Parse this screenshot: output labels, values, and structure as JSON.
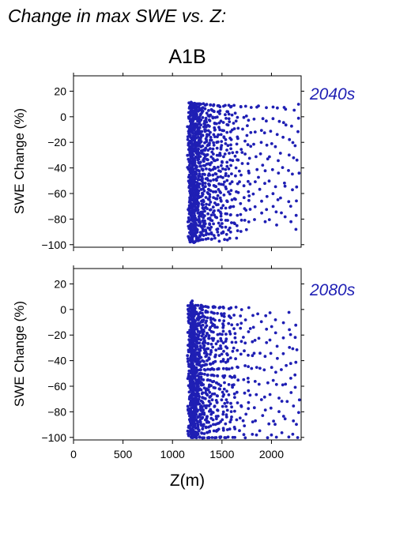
{
  "page": {
    "title": "Change in max SWE vs. Z:",
    "scenario": "A1B"
  },
  "colors": {
    "points": "#1f1fb4",
    "period_label": "#1f1fb4"
  },
  "chart_data": [
    {
      "type": "scatter",
      "period": "2040s",
      "xlabel": "Z(m)",
      "ylabel": "SWE Change (%)",
      "xlim": [
        0,
        2300
      ],
      "ylim": [
        -102,
        32
      ],
      "x_ticks": [
        0,
        500,
        1000,
        1500,
        2000
      ],
      "y_ticks": [
        20,
        0,
        -20,
        -40,
        -60,
        -80,
        -100
      ],
      "show_x_tick_labels": false,
      "grid": false,
      "x_min_data": 1170,
      "x_max_data": 2280,
      "y_min_data": -98,
      "y_max_data": 11,
      "columns": [
        {
          "x": 1175,
          "ymin": -98,
          "ymax": 11,
          "density": 70
        },
        {
          "x": 1185,
          "ymin": -98,
          "ymax": 11,
          "density": 70
        },
        {
          "x": 1195,
          "ymin": -98,
          "ymax": 11,
          "density": 70
        },
        {
          "x": 1205,
          "ymin": -98,
          "ymax": 11,
          "density": 68
        },
        {
          "x": 1215,
          "ymin": -98,
          "ymax": 10,
          "density": 66
        },
        {
          "x": 1225,
          "ymin": -97,
          "ymax": 10,
          "density": 62
        },
        {
          "x": 1240,
          "ymin": -97,
          "ymax": 10,
          "density": 55
        },
        {
          "x": 1255,
          "ymin": -97,
          "ymax": 10,
          "density": 50
        },
        {
          "x": 1270,
          "ymin": -96,
          "ymax": 10,
          "density": 42
        },
        {
          "x": 1285,
          "ymin": -96,
          "ymax": 10,
          "density": 40
        },
        {
          "x": 1300,
          "ymin": -96,
          "ymax": 10,
          "density": 36
        },
        {
          "x": 1315,
          "ymin": -96,
          "ymax": 10,
          "density": 32
        },
        {
          "x": 1330,
          "ymin": -96,
          "ymax": 10,
          "density": 30
        },
        {
          "x": 1350,
          "ymin": -95,
          "ymax": 9,
          "density": 28
        },
        {
          "x": 1370,
          "ymin": -96,
          "ymax": 9,
          "density": 28
        },
        {
          "x": 1390,
          "ymin": -96,
          "ymax": 9,
          "density": 26
        },
        {
          "x": 1410,
          "ymin": -95,
          "ymax": 9,
          "density": 24
        },
        {
          "x": 1430,
          "ymin": -93,
          "ymax": 9,
          "density": 22
        },
        {
          "x": 1450,
          "ymin": -93,
          "ymax": 9,
          "density": 22
        },
        {
          "x": 1470,
          "ymin": -90,
          "ymax": 9,
          "density": 22
        },
        {
          "x": 1490,
          "ymin": -97,
          "ymax": 8,
          "density": 20
        },
        {
          "x": 1510,
          "ymin": -96,
          "ymax": 8,
          "density": 18
        },
        {
          "x": 1535,
          "ymin": -96,
          "ymax": 9,
          "density": 22
        },
        {
          "x": 1560,
          "ymin": -92,
          "ymax": 9,
          "density": 20
        },
        {
          "x": 1585,
          "ymin": -95,
          "ymax": 8,
          "density": 18
        },
        {
          "x": 1610,
          "ymin": -90,
          "ymax": 8,
          "density": 16
        },
        {
          "x": 1640,
          "ymin": -95,
          "ymax": 9,
          "density": 18
        },
        {
          "x": 1675,
          "ymin": -85,
          "ymax": 8,
          "density": 12
        },
        {
          "x": 1710,
          "ymin": -90,
          "ymax": 8,
          "density": 12
        },
        {
          "x": 1750,
          "ymin": -88,
          "ymax": 8,
          "density": 14
        },
        {
          "x": 1790,
          "ymin": -82,
          "ymax": 7,
          "density": 10
        },
        {
          "x": 1840,
          "ymin": -80,
          "ymax": 8,
          "density": 10
        },
        {
          "x": 1890,
          "ymin": -75,
          "ymax": 8,
          "density": 10
        },
        {
          "x": 1950,
          "ymin": -82,
          "ymax": 7,
          "density": 10
        },
        {
          "x": 2000,
          "ymin": -80,
          "ymax": 8,
          "density": 10
        },
        {
          "x": 2060,
          "ymin": -85,
          "ymax": 7,
          "density": 10
        },
        {
          "x": 2110,
          "ymin": -75,
          "ymax": 7,
          "density": 8
        },
        {
          "x": 2160,
          "ymin": -78,
          "ymax": 6,
          "density": 8
        },
        {
          "x": 2210,
          "ymin": -82,
          "ymax": 5,
          "density": 8
        },
        {
          "x": 2260,
          "ymin": -88,
          "ymax": 10,
          "density": 10
        }
      ]
    },
    {
      "type": "scatter",
      "period": "2080s",
      "xlabel": "Z(m)",
      "ylabel": "SWE Change (%)",
      "xlim": [
        0,
        2300
      ],
      "ylim": [
        -102,
        32
      ],
      "x_ticks": [
        0,
        500,
        1000,
        1500,
        2000
      ],
      "y_ticks": [
        20,
        0,
        -20,
        -40,
        -60,
        -80,
        -100
      ],
      "show_x_tick_labels": true,
      "grid": false,
      "x_min_data": 1170,
      "x_max_data": 2280,
      "y_min_data": -100,
      "y_max_data": 7,
      "columns": [
        {
          "x": 1175,
          "ymin": -100,
          "ymax": 3,
          "density": 70
        },
        {
          "x": 1185,
          "ymin": -100,
          "ymax": 7,
          "density": 70
        },
        {
          "x": 1195,
          "ymin": -100,
          "ymax": 5,
          "density": 70
        },
        {
          "x": 1205,
          "ymin": -100,
          "ymax": 4,
          "density": 68
        },
        {
          "x": 1215,
          "ymin": -100,
          "ymax": 3,
          "density": 64
        },
        {
          "x": 1225,
          "ymin": -100,
          "ymax": 3,
          "density": 60
        },
        {
          "x": 1240,
          "ymin": -100,
          "ymax": 3,
          "density": 52
        },
        {
          "x": 1255,
          "ymin": -100,
          "ymax": 3,
          "density": 46
        },
        {
          "x": 1270,
          "ymin": -100,
          "ymax": 3,
          "density": 40
        },
        {
          "x": 1285,
          "ymin": -100,
          "ymax": 3,
          "density": 36
        },
        {
          "x": 1300,
          "ymin": -100,
          "ymax": 3,
          "density": 34
        },
        {
          "x": 1315,
          "ymin": -100,
          "ymax": 2,
          "density": 30
        },
        {
          "x": 1330,
          "ymin": -100,
          "ymax": 2,
          "density": 28
        },
        {
          "x": 1350,
          "ymin": -100,
          "ymax": 2,
          "density": 26
        },
        {
          "x": 1370,
          "ymin": -100,
          "ymax": 2,
          "density": 26
        },
        {
          "x": 1390,
          "ymin": -100,
          "ymax": 2,
          "density": 24
        },
        {
          "x": 1410,
          "ymin": -100,
          "ymax": 2,
          "density": 22
        },
        {
          "x": 1430,
          "ymin": -100,
          "ymax": 2,
          "density": 22
        },
        {
          "x": 1450,
          "ymin": -100,
          "ymax": 2,
          "density": 20
        },
        {
          "x": 1470,
          "ymin": -100,
          "ymax": 2,
          "density": 20
        },
        {
          "x": 1490,
          "ymin": -100,
          "ymax": 1,
          "density": 18
        },
        {
          "x": 1510,
          "ymin": -100,
          "ymax": 1,
          "density": 16
        },
        {
          "x": 1535,
          "ymin": -100,
          "ymax": 2,
          "density": 20
        },
        {
          "x": 1560,
          "ymin": -100,
          "ymax": 1,
          "density": 18
        },
        {
          "x": 1585,
          "ymin": -100,
          "ymax": 1,
          "density": 16
        },
        {
          "x": 1610,
          "ymin": -100,
          "ymax": 1,
          "density": 14
        },
        {
          "x": 1640,
          "ymin": -100,
          "ymax": 2,
          "density": 16
        },
        {
          "x": 1675,
          "ymin": -95,
          "ymax": -5,
          "density": 10
        },
        {
          "x": 1710,
          "ymin": -98,
          "ymax": 0,
          "density": 10
        },
        {
          "x": 1750,
          "ymin": -100,
          "ymax": 1,
          "density": 12
        },
        {
          "x": 1790,
          "ymin": -98,
          "ymax": -5,
          "density": 10
        },
        {
          "x": 1840,
          "ymin": -98,
          "ymax": -3,
          "density": 10
        },
        {
          "x": 1890,
          "ymin": -95,
          "ymax": -10,
          "density": 8
        },
        {
          "x": 1950,
          "ymin": -100,
          "ymax": -5,
          "density": 10
        },
        {
          "x": 2000,
          "ymin": -98,
          "ymax": -3,
          "density": 10
        },
        {
          "x": 2060,
          "ymin": -100,
          "ymax": -8,
          "density": 10
        },
        {
          "x": 2110,
          "ymin": -96,
          "ymax": -10,
          "density": 8
        },
        {
          "x": 2160,
          "ymin": -100,
          "ymax": -2,
          "density": 8
        },
        {
          "x": 2210,
          "ymin": -98,
          "ymax": -20,
          "density": 8
        },
        {
          "x": 2260,
          "ymin": -100,
          "ymax": -12,
          "density": 10
        }
      ]
    }
  ]
}
